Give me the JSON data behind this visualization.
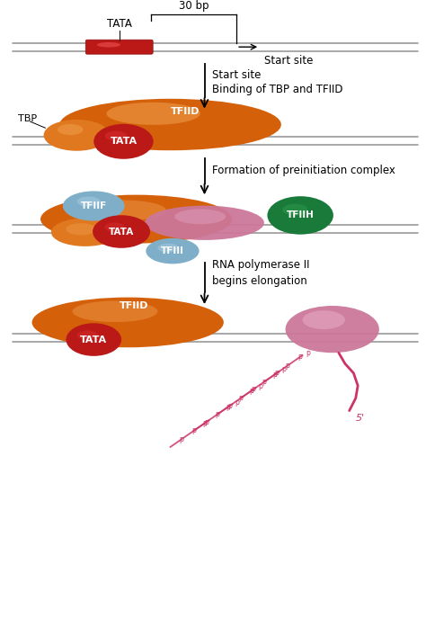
{
  "bg_color": "#ffffff",
  "dna_line_color": "#999999",
  "color_orange": "#d4600a",
  "color_orange_mid": "#e07820",
  "color_orange_light": "#f0a050",
  "color_red_dark": "#bb1818",
  "color_red_bright": "#dd3333",
  "color_blue_gray": "#7faec8",
  "color_blue_gray_light": "#a8cce0",
  "color_green_dark": "#1a7a3a",
  "color_green_mid": "#2a9a4a",
  "color_pink": "#cc7799",
  "color_pink_light": "#dda0bb",
  "color_pink_bright": "#e8b0c8",
  "color_rna_strand": "#cc3366",
  "label_30bp": "30 bp",
  "label_tata_top": "TATA",
  "label_startsite": "Start site",
  "label_binding": "Binding of TBP and TFIID",
  "label_preinit": "Formation of preinitiation complex",
  "label_elongation": "RNA polymerase II\nbegins elongation",
  "label_TBP": "TBP",
  "label_TFIID": "TFIID",
  "label_TATA": "TATA",
  "label_TFIIF": "TFIIF",
  "label_TFIIH": "TFIIH",
  "label_TFIII": "TFIII",
  "figsize": [
    4.74,
    6.96
  ],
  "dpi": 100
}
